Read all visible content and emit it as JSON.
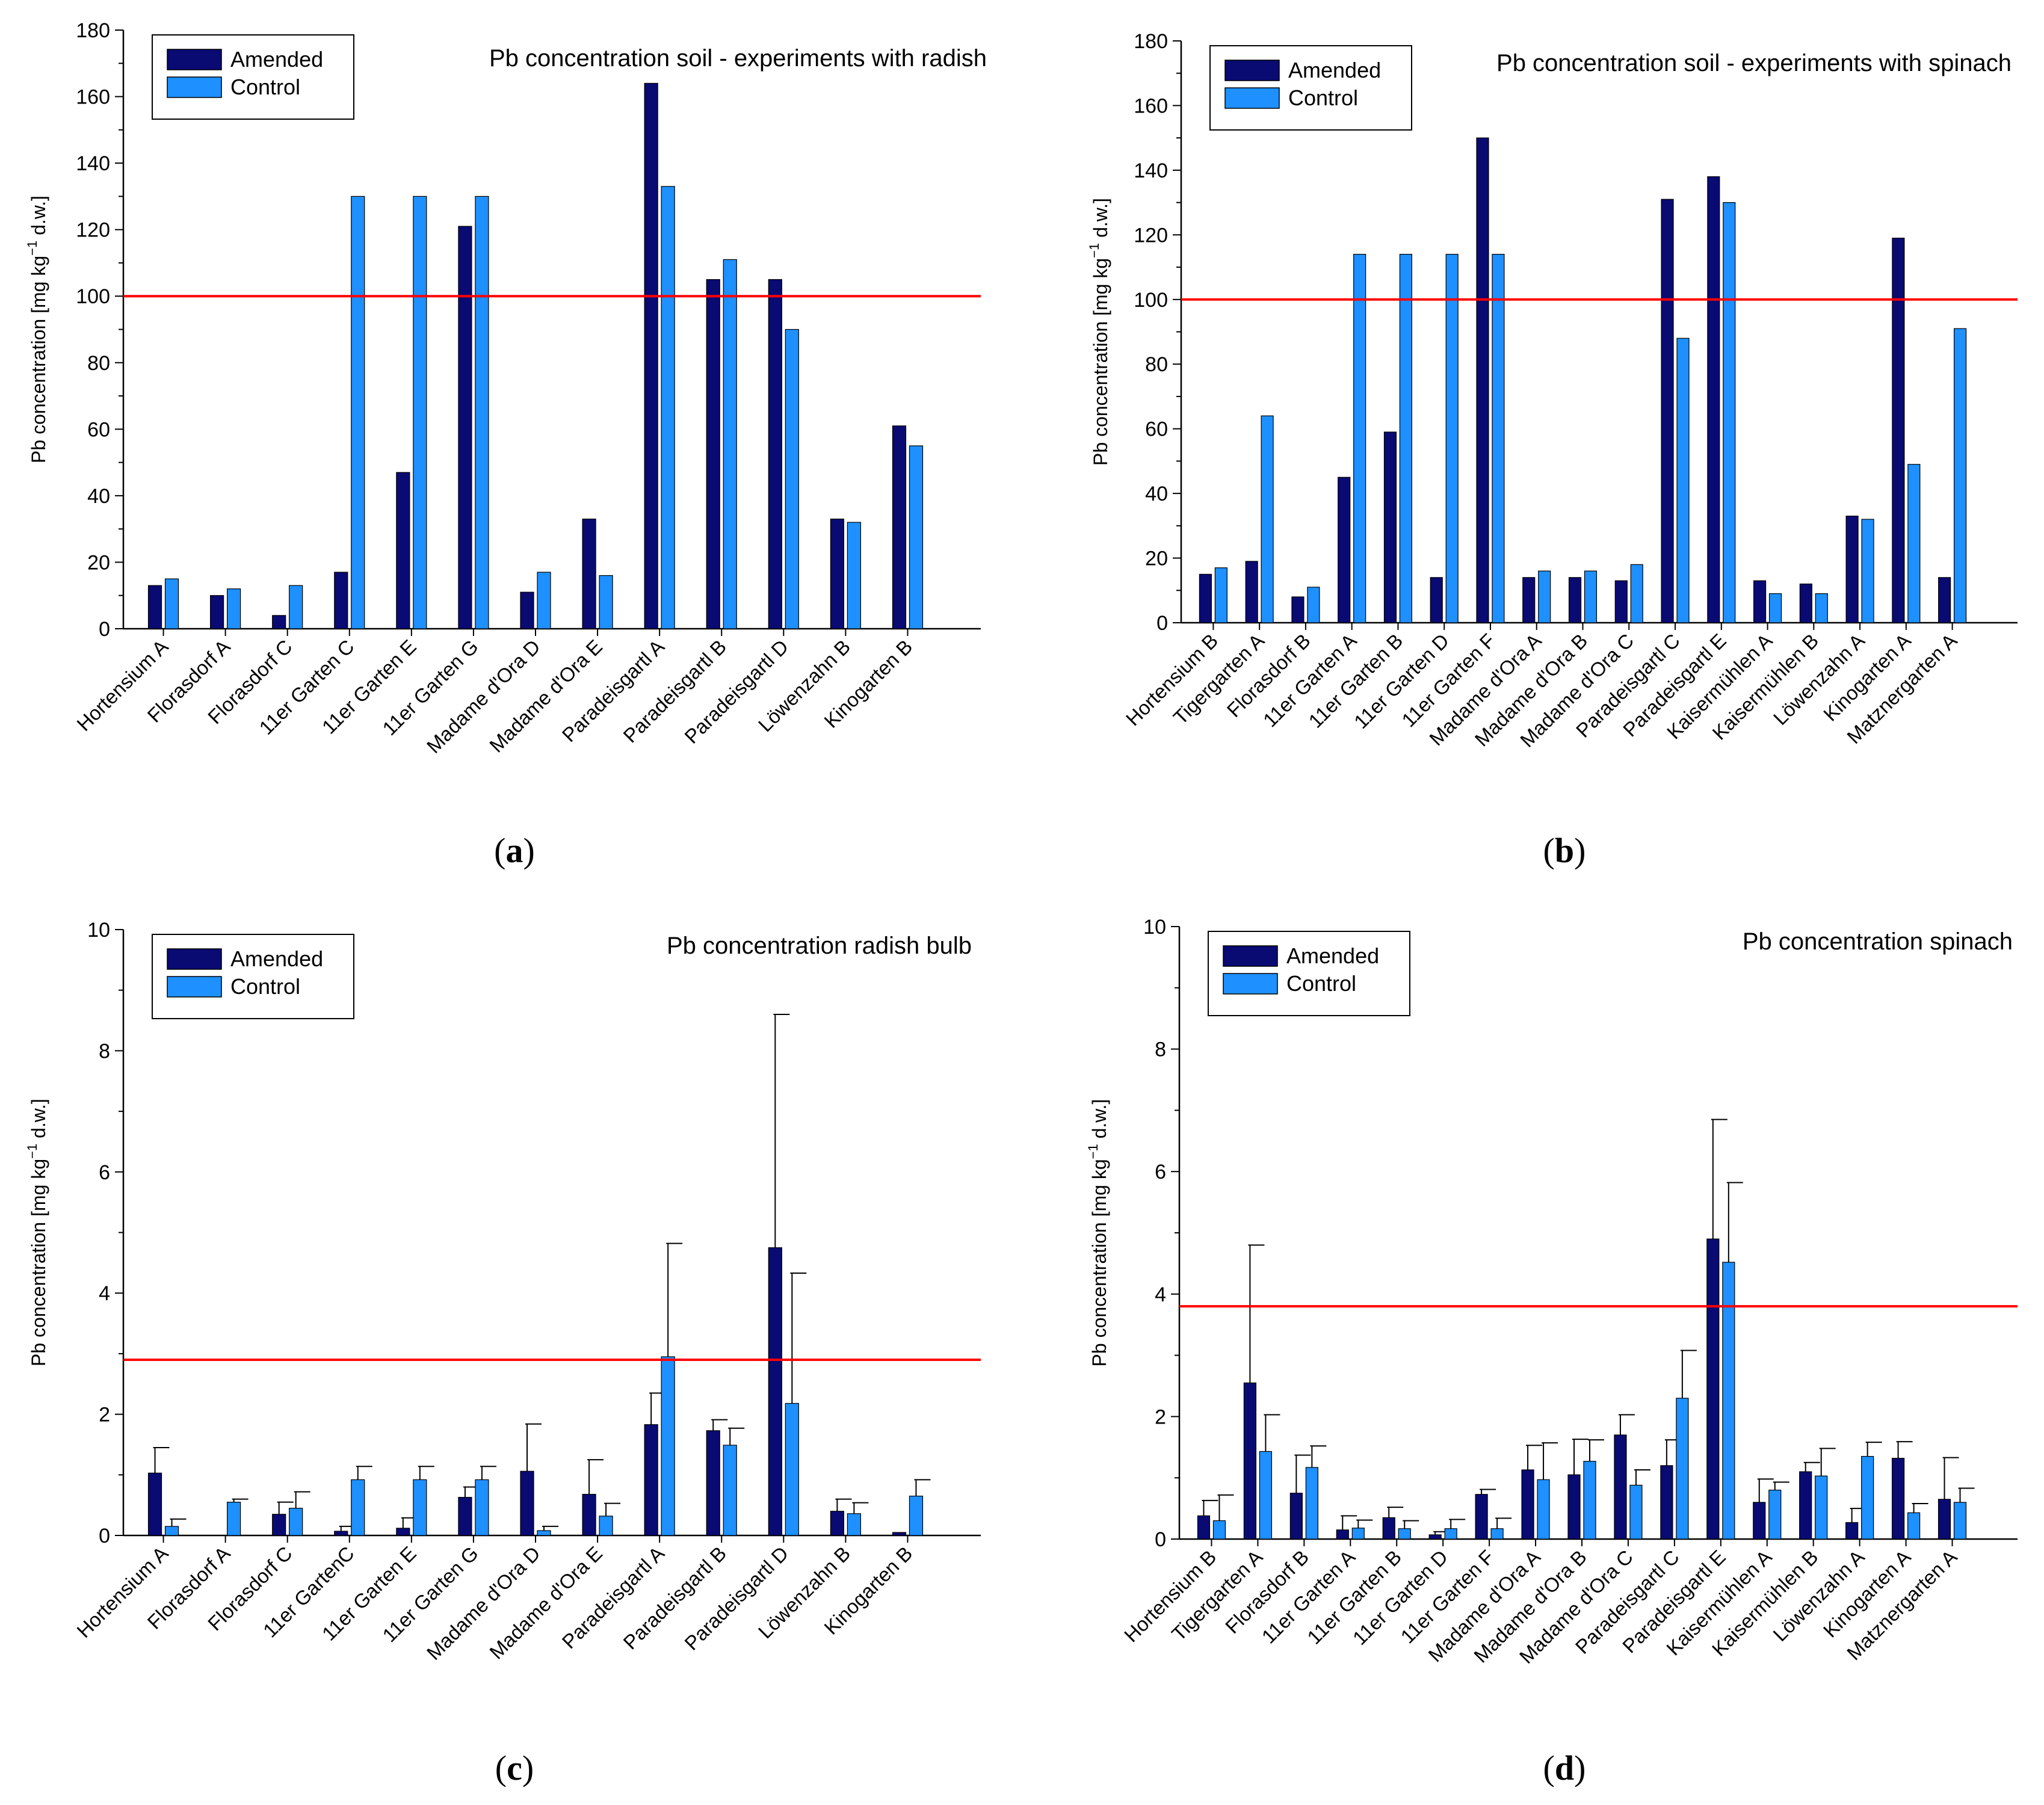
{
  "colors": {
    "amended": "#0a0a73",
    "control": "#1e90ff",
    "threshold": "#ff0000"
  },
  "panel_labels": {
    "a": "a",
    "b": "b",
    "c": "c",
    "d": "d"
  },
  "chart_data": [
    {
      "id": "a",
      "type": "bar",
      "title": "Pb concentration soil - experiments with radish",
      "xlabel": "",
      "ylabel": "Pb concentration [mg kg-1 d.w.]",
      "ylabel_parts": {
        "prefix": "Pb concentration [mg kg",
        "sup": "−1",
        "suffix": " d.w.]"
      },
      "ylim": [
        0,
        180
      ],
      "yticks": [
        0,
        20,
        40,
        60,
        80,
        100,
        120,
        140,
        160,
        180
      ],
      "threshold": 100,
      "legend": [
        "Amended",
        "Control"
      ],
      "legend_position": "top-left",
      "categories": [
        "Hortensium A",
        "Florasdorf A",
        "Florasdorf C",
        "11er Garten C",
        "11er Garten E",
        "11er Garten G",
        "Madame d'Ora D",
        "Madame d'Ora E",
        "Paradeisgartl A",
        "Paradeisgartl B",
        "Paradeisgartl D",
        "Löwenzahn B",
        "Kinogarten B"
      ],
      "series": [
        {
          "name": "Amended",
          "values": [
            13,
            10,
            4,
            17,
            47,
            121,
            11,
            33,
            164,
            105,
            105,
            33,
            61
          ]
        },
        {
          "name": "Control",
          "values": [
            15,
            12,
            13,
            130,
            130,
            130,
            17,
            16,
            133,
            111,
            90,
            32,
            55
          ]
        }
      ]
    },
    {
      "id": "b",
      "type": "bar",
      "title": "Pb concentration soil - experiments with spinach",
      "xlabel": "",
      "ylabel": "Pb concentration [mg kg-1 d.w.]",
      "ylabel_parts": {
        "prefix": "Pb concentration [mg kg",
        "sup": "−1",
        "suffix": " d.w.]"
      },
      "ylim": [
        0,
        180
      ],
      "yticks": [
        0,
        20,
        40,
        60,
        80,
        100,
        120,
        140,
        160,
        180
      ],
      "threshold": 100,
      "legend": [
        "Amended",
        "Control"
      ],
      "legend_position": "top-left",
      "categories": [
        "Hortensium B",
        "Tigergarten A",
        "Florasdorf B",
        "11er Garten A",
        "11er Garten B",
        "11er Garten D",
        "11er Garten F",
        "Madame d'Ora A",
        "Madame d'Ora B",
        "Madame d'Ora C",
        "Paradeisgartl C",
        "Paradeisgartl E",
        "Kaisermühlen A",
        "Kaisermühlen B",
        "Löwenzahn A",
        "Kinogarten A",
        "Matznergarten A"
      ],
      "series": [
        {
          "name": "Amended",
          "values": [
            15,
            19,
            8,
            45,
            59,
            14,
            150,
            14,
            14,
            13,
            131,
            138,
            13,
            12,
            33,
            119,
            14
          ]
        },
        {
          "name": "Control",
          "values": [
            17,
            64,
            11,
            114,
            114,
            114,
            114,
            16,
            16,
            18,
            88,
            130,
            9,
            9,
            32,
            49,
            91
          ]
        }
      ]
    },
    {
      "id": "c",
      "type": "bar",
      "title": "Pb concentration radish bulb",
      "xlabel": "",
      "ylabel": "Pb concentration [mg kg-1 d.w.]",
      "ylabel_parts": {
        "prefix": "Pb concentration [mg kg",
        "sup": "−1",
        "suffix": " d.w.]"
      },
      "ylim": [
        0,
        10
      ],
      "yticks": [
        0,
        2,
        4,
        6,
        8,
        10
      ],
      "threshold": 2.9,
      "legend": [
        "Amended",
        "Control"
      ],
      "legend_position": "top-left",
      "categories": [
        "Hortensium A",
        "Florasdorf A",
        "Florasdorf C",
        "11er GartenC",
        "11er Garten E",
        "11er Garten G",
        "Madame d'Ora D",
        "Madame d'Ora E",
        "Paradeisgartl A",
        "Paradeisgartl B",
        "Paradeisgartl D",
        "Löwenzahn B",
        "Kinogarten B"
      ],
      "series": [
        {
          "name": "Amended",
          "values": [
            1.03,
            0,
            0.35,
            0.07,
            0.12,
            0.63,
            1.06,
            0.68,
            1.83,
            1.73,
            4.75,
            0.4,
            0.05
          ],
          "errors": [
            0.42,
            0,
            0.2,
            0.08,
            0.17,
            0.17,
            0.78,
            0.57,
            0.52,
            0.18,
            3.85,
            0.2,
            0
          ]
        },
        {
          "name": "Control",
          "values": [
            0.15,
            0.55,
            0.45,
            0.92,
            0.92,
            0.92,
            0.08,
            0.32,
            2.95,
            1.49,
            2.18,
            0.36,
            0.65
          ],
          "errors": [
            0.12,
            0.05,
            0.27,
            0.22,
            0.22,
            0.22,
            0.07,
            0.21,
            1.87,
            0.28,
            2.15,
            0.18,
            0.27
          ]
        }
      ]
    },
    {
      "id": "d",
      "type": "bar",
      "title": "Pb concentration spinach",
      "xlabel": "",
      "ylabel": "Pb concentration [mg kg-1 d.w.]",
      "ylabel_parts": {
        "prefix": "Pb concentration [mg kg",
        "sup": "−1",
        "suffix": " d.w.]"
      },
      "ylim": [
        0,
        10
      ],
      "yticks": [
        0,
        2,
        4,
        6,
        8,
        10
      ],
      "threshold": 3.8,
      "legend": [
        "Amended",
        "Control"
      ],
      "legend_position": "top-left",
      "categories": [
        "Hortensium B",
        "Tigergarten A",
        "Florasdorf B",
        "11er Garten A",
        "11er Garten B",
        "11er Garten D",
        "11er Garten F",
        "Madame d'Ora A",
        "Madame d'Ora B",
        "Madame d'Ora C",
        "Paradeisgartl C",
        "Paradeisgartl E",
        "Kaisermühlen A",
        "Kaisermühlen B",
        "Löwenzahn A",
        "Kinogarten A",
        "Matznergarten A"
      ],
      "series": [
        {
          "name": "Amended",
          "values": [
            0.38,
            2.55,
            0.75,
            0.15,
            0.35,
            0.07,
            0.73,
            1.13,
            1.05,
            1.7,
            1.2,
            4.9,
            0.6,
            1.1,
            0.27,
            1.32,
            0.65
          ],
          "errors": [
            0.25,
            2.25,
            0.62,
            0.23,
            0.17,
            0.05,
            0.08,
            0.4,
            0.58,
            0.33,
            0.42,
            1.95,
            0.38,
            0.15,
            0.23,
            0.27,
            0.68
          ]
        },
        {
          "name": "Control",
          "values": [
            0.3,
            1.43,
            1.17,
            0.18,
            0.17,
            0.17,
            0.17,
            0.97,
            1.27,
            0.88,
            2.3,
            4.52,
            0.8,
            1.03,
            1.35,
            0.43,
            0.6
          ],
          "errors": [
            0.42,
            0.6,
            0.35,
            0.13,
            0.13,
            0.15,
            0.17,
            0.6,
            0.35,
            0.25,
            0.78,
            1.3,
            0.13,
            0.45,
            0.23,
            0.15,
            0.23
          ]
        }
      ]
    }
  ]
}
